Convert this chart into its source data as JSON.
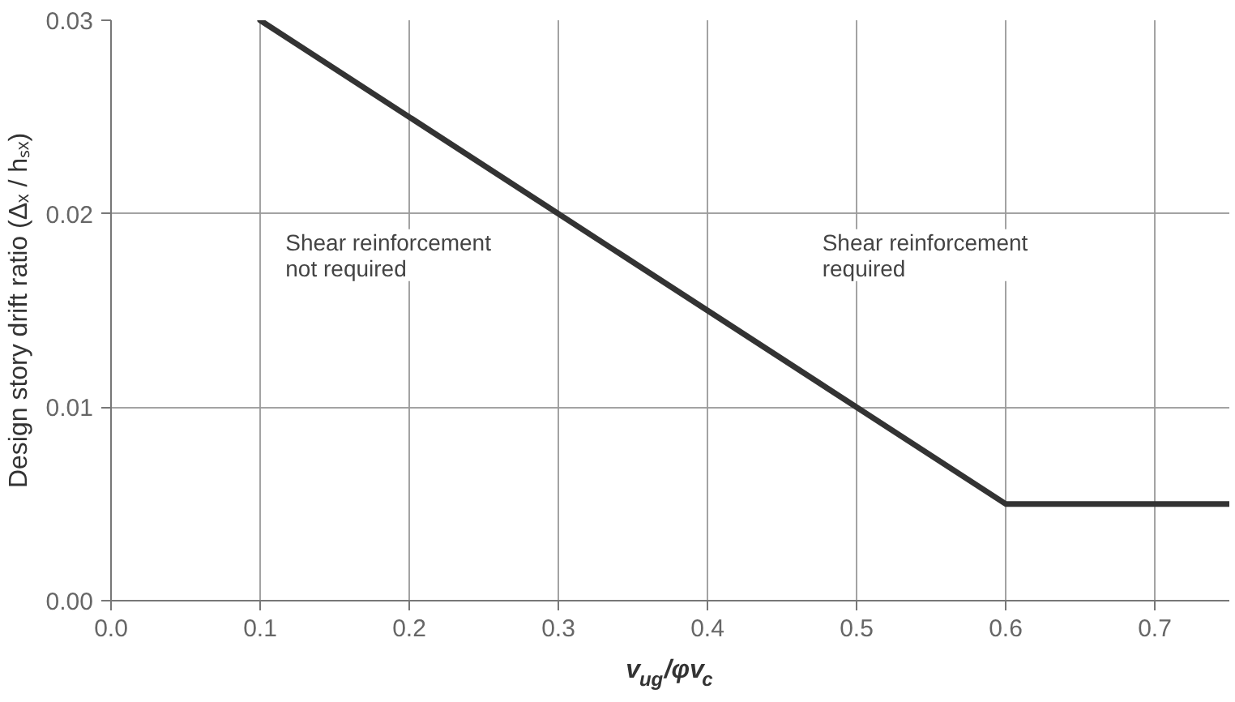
{
  "chart_data": {
    "type": "line",
    "xlabel": "v$_{ug}$/φv$_{c}$",
    "ylabel": "Design story drift ratio (Δₓ / hₛₓ)",
    "x": [
      0.1,
      0.6,
      0.75
    ],
    "series": [
      {
        "color": "#333333",
        "values": [
          0.03,
          0.005,
          0.005
        ]
      }
    ],
    "xlim": [
      0,
      0.75
    ],
    "ylim": [
      0,
      0.03
    ],
    "xticks": [
      {
        "value": 0,
        "label": "0.0"
      },
      {
        "value": 0.1,
        "label": "0.1"
      },
      {
        "value": 0.2,
        "label": "0.2"
      },
      {
        "value": 0.3,
        "label": "0.3"
      },
      {
        "value": 0.4,
        "label": "0.4"
      },
      {
        "value": 0.5,
        "label": "0.5"
      },
      {
        "value": 0.6,
        "label": "0.6"
      },
      {
        "value": 0.7,
        "label": "0.7"
      }
    ],
    "yticks": [
      {
        "value": 0,
        "label": "0.00"
      },
      {
        "value": 0.01,
        "label": "0.01"
      },
      {
        "value": 0.02,
        "label": "0.02"
      },
      {
        "value": 0.03,
        "label": "0.03"
      }
    ],
    "grid": true,
    "marker": "none",
    "line_style": "solid",
    "annotations": [
      "Shear reinforcement\nnot required",
      "Shear reinforcement\nrequired"
    ]
  }
}
